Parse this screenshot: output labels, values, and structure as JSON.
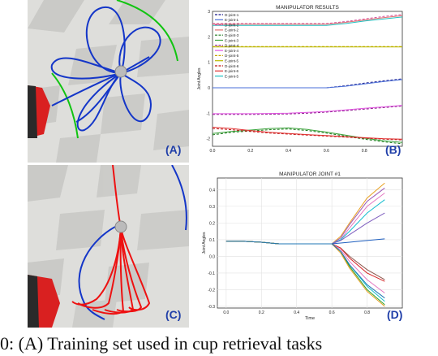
{
  "panels": {
    "a_label": "(A)",
    "b_label": "(B)",
    "c_label": "(C)",
    "d_label": "(D)"
  },
  "caption": "0: (A) Training set used in cup retrieval tasks",
  "colors": {
    "scene_floor_light": "#e6e6e4",
    "scene_floor_dark": "#c7c7c4",
    "trajectory_blue": "#1436c8",
    "trajectory_red": "#ee1111",
    "arc_green": "#11c411",
    "robot_red": "#d92020",
    "label_blue": "#1f3ea8"
  },
  "chart_data": [
    {
      "type": "line",
      "title": "MANIPULATOR RESULTS",
      "ylabel": "Joint Angles",
      "xlabel": "",
      "xlim": [
        0,
        1
      ],
      "xticks": [
        "0.0",
        "0.2",
        "0.4",
        "0.6",
        "0.8"
      ],
      "ylim": [
        -2.3,
        3.0
      ],
      "yticks": [
        "-2",
        "-1",
        "0",
        "1",
        "2",
        "3"
      ],
      "legend": "top-left",
      "x": [
        0,
        0.1,
        0.2,
        0.3,
        0.4,
        0.5,
        0.6,
        0.7,
        0.8,
        0.9,
        1.0
      ],
      "series": [
        {
          "name": "D-joint-1",
          "color": "#1a1a8c",
          "style": "dashed",
          "values": [
            0,
            0,
            0,
            0,
            0,
            0,
            0,
            0.08,
            0.18,
            0.27,
            0.35
          ]
        },
        {
          "name": "E-joint-1",
          "color": "#4a6fd8",
          "style": "solid",
          "values": [
            0,
            0,
            0,
            0,
            0,
            0,
            0,
            0.06,
            0.15,
            0.24,
            0.32
          ]
        },
        {
          "name": "D-joint-2",
          "color": "#d24c9a",
          "style": "dashed",
          "values": [
            2.52,
            2.52,
            2.52,
            2.52,
            2.52,
            2.52,
            2.52,
            2.6,
            2.7,
            2.8,
            2.88
          ]
        },
        {
          "name": "E-joint-2",
          "color": "#e07070",
          "style": "solid",
          "values": [
            2.5,
            2.5,
            2.5,
            2.5,
            2.5,
            2.5,
            2.5,
            2.57,
            2.66,
            2.75,
            2.83
          ]
        },
        {
          "name": "D-joint-3",
          "color": "#1e7b1e",
          "style": "dashed",
          "values": [
            -1.85,
            -1.75,
            -1.7,
            -1.65,
            -1.62,
            -1.68,
            -1.78,
            -1.9,
            -2.02,
            -2.12,
            -2.2
          ]
        },
        {
          "name": "E-joint-3",
          "color": "#3aa23a",
          "style": "solid",
          "values": [
            -1.8,
            -1.72,
            -1.66,
            -1.6,
            -1.58,
            -1.64,
            -1.74,
            -1.86,
            -1.98,
            -2.08,
            -2.15
          ]
        },
        {
          "name": "D-joint-4",
          "color": "#8c1a8c",
          "style": "dashed",
          "values": [
            -1.05,
            -1.05,
            -1.05,
            -1.04,
            -1.03,
            -1.0,
            -0.96,
            -0.9,
            -0.84,
            -0.78,
            -0.72
          ]
        },
        {
          "name": "E-joint-4",
          "color": "#e055e0",
          "style": "solid",
          "values": [
            -1.02,
            -1.02,
            -1.02,
            -1.01,
            -1.0,
            -0.97,
            -0.93,
            -0.87,
            -0.81,
            -0.75,
            -0.69
          ]
        },
        {
          "name": "D-joint-5",
          "color": "#c9a400",
          "style": "dashed",
          "values": [
            1.62,
            1.62,
            1.62,
            1.62,
            1.62,
            1.62,
            1.62,
            1.62,
            1.62,
            1.62,
            1.62
          ]
        },
        {
          "name": "E-joint-5",
          "color": "#b9b900",
          "style": "solid",
          "values": [
            1.6,
            1.6,
            1.6,
            1.6,
            1.6,
            1.6,
            1.6,
            1.6,
            1.6,
            1.6,
            1.6
          ]
        },
        {
          "name": "D-joint-6",
          "color": "#c01818",
          "style": "dashed",
          "values": [
            -1.6,
            -1.65,
            -1.72,
            -1.78,
            -1.82,
            -1.86,
            -1.9,
            -1.94,
            -1.98,
            -2.02,
            -2.05
          ]
        },
        {
          "name": "E-joint-6",
          "color": "#e03030",
          "style": "solid",
          "values": [
            -1.55,
            -1.6,
            -1.68,
            -1.75,
            -1.8,
            -1.84,
            -1.88,
            -1.92,
            -1.96,
            -2.0,
            -2.02
          ]
        },
        {
          "name": "E-joint-5",
          "color": "#20c0c0",
          "style": "solid",
          "values": [
            2.45,
            2.45,
            2.45,
            2.45,
            2.45,
            2.45,
            2.45,
            2.52,
            2.62,
            2.7,
            2.78
          ]
        }
      ]
    },
    {
      "type": "line",
      "title": "MANIPULATOR JOINT #1",
      "ylabel": "Joint Angles",
      "xlabel": "Time",
      "xlim": [
        -0.05,
        1.0
      ],
      "xticks": [
        "0.0",
        "0.2",
        "0.4",
        "0.6",
        "0.8"
      ],
      "ylim": [
        -0.31,
        0.47
      ],
      "yticks": [
        "-0.3",
        "-0.2",
        "-0.1",
        "0.0",
        "0.1",
        "0.2",
        "0.3",
        "0.4"
      ],
      "grid": true,
      "x": [
        0,
        0.1,
        0.2,
        0.3,
        0.4,
        0.5,
        0.6,
        0.65,
        0.7,
        0.8,
        0.9
      ],
      "series": [
        {
          "color": "#e8a020",
          "values": [
            0.09,
            0.09,
            0.085,
            0.075,
            0.075,
            0.075,
            0.075,
            0.12,
            0.2,
            0.35,
            0.44
          ]
        },
        {
          "color": "#9b59b6",
          "values": [
            0.09,
            0.09,
            0.085,
            0.075,
            0.075,
            0.075,
            0.075,
            0.11,
            0.19,
            0.33,
            0.41
          ]
        },
        {
          "color": "#e377c2",
          "values": [
            0.09,
            0.09,
            0.085,
            0.075,
            0.075,
            0.075,
            0.075,
            0.1,
            0.17,
            0.3,
            0.38
          ]
        },
        {
          "color": "#17becf",
          "values": [
            0.09,
            0.09,
            0.085,
            0.075,
            0.075,
            0.075,
            0.075,
            0.1,
            0.15,
            0.26,
            0.34
          ]
        },
        {
          "color": "#7f5fbf",
          "values": [
            0.09,
            0.09,
            0.085,
            0.075,
            0.075,
            0.075,
            0.075,
            0.095,
            0.13,
            0.2,
            0.26
          ]
        },
        {
          "color": "#1f5fbf",
          "values": [
            0.09,
            0.09,
            0.085,
            0.075,
            0.075,
            0.075,
            0.075,
            0.08,
            0.085,
            0.095,
            0.105
          ]
        },
        {
          "color": "#8c564b",
          "values": [
            0.09,
            0.09,
            0.085,
            0.075,
            0.075,
            0.075,
            0.075,
            0.05,
            0.0,
            -0.08,
            -0.14
          ]
        },
        {
          "color": "#d62728",
          "values": [
            0.09,
            0.09,
            0.085,
            0.075,
            0.075,
            0.075,
            0.075,
            0.05,
            -0.01,
            -0.1,
            -0.15
          ]
        },
        {
          "color": "#e377c2",
          "values": [
            0.09,
            0.09,
            0.085,
            0.075,
            0.075,
            0.075,
            0.075,
            0.04,
            -0.03,
            -0.14,
            -0.22
          ]
        },
        {
          "color": "#17becf",
          "values": [
            0.09,
            0.09,
            0.085,
            0.075,
            0.075,
            0.075,
            0.075,
            0.03,
            -0.05,
            -0.18,
            -0.27
          ]
        },
        {
          "color": "#2ca02c",
          "values": [
            0.09,
            0.09,
            0.085,
            0.075,
            0.075,
            0.075,
            0.075,
            0.03,
            -0.06,
            -0.2,
            -0.29
          ]
        },
        {
          "color": "#e8a020",
          "values": [
            0.09,
            0.09,
            0.085,
            0.075,
            0.075,
            0.075,
            0.075,
            0.02,
            -0.07,
            -0.21,
            -0.3
          ]
        },
        {
          "color": "#1f77b4",
          "values": [
            0.09,
            0.09,
            0.085,
            0.075,
            0.075,
            0.075,
            0.075,
            0.03,
            -0.05,
            -0.17,
            -0.25
          ]
        }
      ]
    }
  ]
}
